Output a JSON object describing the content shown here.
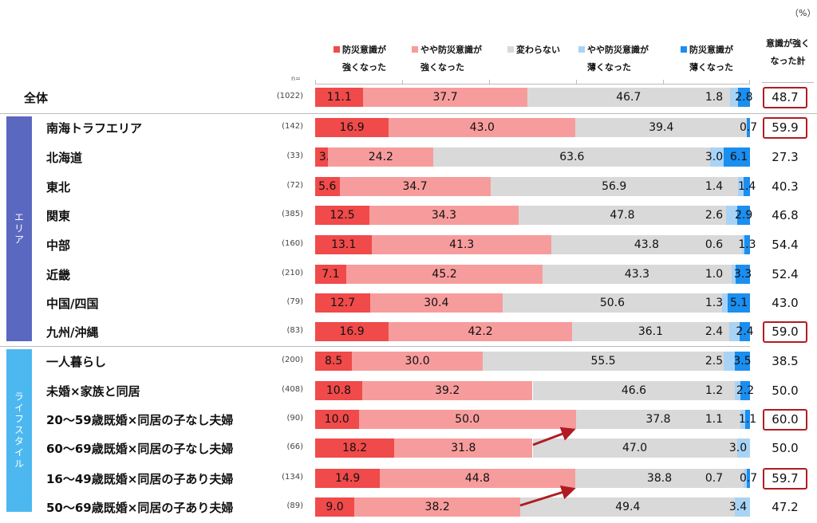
{
  "chart_data": {
    "type": "bar",
    "orientation": "horizontal-stacked-100",
    "unit_label": "（%）",
    "n_label": "n=",
    "legend": [
      {
        "l1": "防災意識が",
        "l2": "強くなった",
        "color": "#f04a4a"
      },
      {
        "l1": "やや防災意識が",
        "l2": "強くなった",
        "color": "#f79c9c"
      },
      {
        "l1": "変わらない",
        "l2": "",
        "color": "#d9d9d9"
      },
      {
        "l1": "やや防災意識が",
        "l2": "薄くなった",
        "color": "#a9d3f5"
      },
      {
        "l1": "防災意識が",
        "l2": "薄くなった",
        "color": "#1b8ef0"
      }
    ],
    "total_header": {
      "l1": "意識が強く",
      "l2": "なった計"
    },
    "groups": [
      {
        "label": "エリア",
        "color": "#5b68c0"
      },
      {
        "label": "ライフスタイル",
        "color": "#4db8f0"
      }
    ],
    "rows": [
      {
        "label": "全体",
        "n": "(1022)",
        "values": [
          11.1,
          37.7,
          46.7,
          1.8,
          2.8
        ],
        "total": "48.7",
        "highlight": true,
        "group": -1
      },
      {
        "label": "南海トラフエリア",
        "n": "(142)",
        "values": [
          16.9,
          43.0,
          39.4,
          0,
          0.7
        ],
        "total": "59.9",
        "highlight": true,
        "group": 0
      },
      {
        "label": "北海道",
        "n": "(33)",
        "values": [
          3.0,
          24.2,
          63.6,
          3.0,
          6.1
        ],
        "total": "27.3",
        "highlight": false,
        "group": 0
      },
      {
        "label": "東北",
        "n": "(72)",
        "values": [
          5.6,
          34.7,
          56.9,
          1.4,
          1.4
        ],
        "total": "40.3",
        "highlight": false,
        "group": 0
      },
      {
        "label": "関東",
        "n": "(385)",
        "values": [
          12.5,
          34.3,
          47.8,
          2.6,
          2.9
        ],
        "total": "46.8",
        "highlight": false,
        "group": 0
      },
      {
        "label": "中部",
        "n": "(160)",
        "values": [
          13.1,
          41.3,
          43.8,
          0.6,
          1.3
        ],
        "total": "54.4",
        "highlight": false,
        "group": 0
      },
      {
        "label": "近畿",
        "n": "(210)",
        "values": [
          7.1,
          45.2,
          43.3,
          1.0,
          3.3
        ],
        "total": "52.4",
        "highlight": false,
        "group": 0
      },
      {
        "label": "中国/四国",
        "n": "(79)",
        "values": [
          12.7,
          30.4,
          50.6,
          1.3,
          5.1
        ],
        "total": "43.0",
        "highlight": false,
        "group": 0
      },
      {
        "label": "九州/沖縄",
        "n": "(83)",
        "values": [
          16.9,
          42.2,
          36.1,
          2.4,
          2.4
        ],
        "total": "59.0",
        "highlight": true,
        "group": 0
      },
      {
        "label": "一人暮らし",
        "n": "(200)",
        "values": [
          8.5,
          30.0,
          55.5,
          2.5,
          3.5
        ],
        "total": "38.5",
        "highlight": false,
        "group": 1
      },
      {
        "label": "未婚×家族と同居",
        "n": "(408)",
        "values": [
          10.8,
          39.2,
          46.6,
          1.2,
          2.2
        ],
        "total": "50.0",
        "highlight": false,
        "group": 1
      },
      {
        "label": "20～59歳既婚×同居の子なし夫婦",
        "n": "(90)",
        "values": [
          10.0,
          50.0,
          37.8,
          1.1,
          1.1
        ],
        "total": "60.0",
        "highlight": true,
        "group": 1
      },
      {
        "label": "60～69歳既婚×同居の子なし夫婦",
        "n": "(66)",
        "values": [
          18.2,
          31.8,
          47.0,
          3.0,
          0
        ],
        "total": "50.0",
        "highlight": false,
        "group": 1
      },
      {
        "label": "16～49歳既婚×同居の子あり夫婦",
        "n": "(134)",
        "values": [
          14.9,
          44.8,
          38.8,
          0.7,
          0.7
        ],
        "total": "59.7",
        "highlight": true,
        "group": 1
      },
      {
        "label": "50～69歳既婚×同居の子あり夫婦",
        "n": "(89)",
        "values": [
          9.0,
          38.2,
          49.4,
          3.4,
          0
        ],
        "total": "47.2",
        "highlight": false,
        "group": 1
      }
    ]
  }
}
